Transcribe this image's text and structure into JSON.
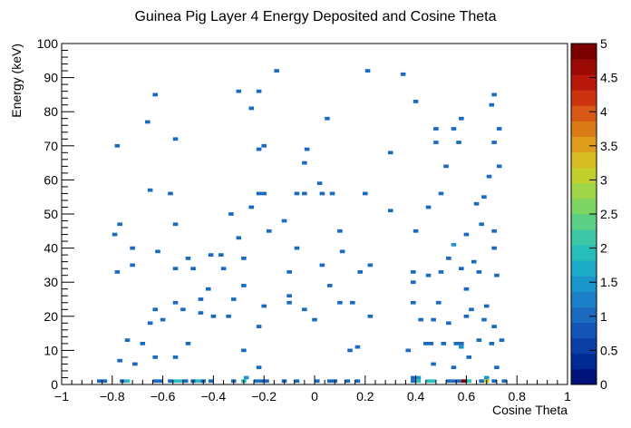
{
  "chart_data": {
    "type": "heatmap",
    "title": "Guinea Pig Layer 4 Energy Deposited and Cosine Theta",
    "xlabel": "Cosine Theta",
    "ylabel": "Energy (keV)",
    "xlim": [
      -1,
      1
    ],
    "ylim": [
      0,
      100
    ],
    "x_bin_width": 0.02,
    "y_bin_width": 1,
    "x_ticks": [
      "−1",
      "−0.8",
      "−0.6",
      "−0.4",
      "−0.2",
      "0",
      "0.2",
      "0.4",
      "0.6",
      "0.8",
      "1"
    ],
    "x_tick_values": [
      -1,
      -0.8,
      -0.6,
      -0.4,
      -0.2,
      0,
      0.2,
      0.4,
      0.6,
      0.8,
      1
    ],
    "y_ticks": [
      "0",
      "10",
      "20",
      "30",
      "40",
      "50",
      "60",
      "70",
      "80",
      "90",
      "100"
    ],
    "y_tick_values": [
      0,
      10,
      20,
      30,
      40,
      50,
      60,
      70,
      80,
      90,
      100
    ],
    "z_range": [
      0,
      5
    ],
    "colorbar_ticks": [
      "0",
      "0.5",
      "1",
      "1.5",
      "2",
      "2.5",
      "3",
      "3.5",
      "4",
      "4.5",
      "5"
    ],
    "colorbar_tick_values": [
      0,
      0.5,
      1,
      1.5,
      2,
      2.5,
      3,
      3.5,
      4,
      4.5,
      5
    ],
    "palette": [
      "#00137a",
      "#002a94",
      "#0b3fa6",
      "#1454b4",
      "#1a6ac0",
      "#1b80c8",
      "#1a96cc",
      "#1dabc8",
      "#27bdbb",
      "#3ec7a6",
      "#5bcf85",
      "#7cd462",
      "#9fd546",
      "#c2cf2d",
      "#d6bb22",
      "#dd9c1c",
      "#db7b18",
      "#d65814",
      "#cc3410",
      "#b8180c",
      "#9c0a06",
      "#7a0000"
    ],
    "bins": [
      {
        "x": -0.85,
        "y": 1,
        "z": 1
      },
      {
        "x": -0.83,
        "y": 1,
        "z": 1
      },
      {
        "x": -0.76,
        "y": 1,
        "z": 1
      },
      {
        "x": -0.74,
        "y": 1,
        "z": 2
      },
      {
        "x": -0.63,
        "y": 1,
        "z": 1
      },
      {
        "x": -0.61,
        "y": 1,
        "z": 1
      },
      {
        "x": -0.57,
        "y": 1,
        "z": 1
      },
      {
        "x": -0.55,
        "y": 1,
        "z": 2
      },
      {
        "x": -0.53,
        "y": 1,
        "z": 2
      },
      {
        "x": -0.51,
        "y": 1,
        "z": 1
      },
      {
        "x": -0.48,
        "y": 1,
        "z": 1
      },
      {
        "x": -0.46,
        "y": 1,
        "z": 2
      },
      {
        "x": -0.44,
        "y": 1,
        "z": 1
      },
      {
        "x": -0.41,
        "y": 1,
        "z": 1
      },
      {
        "x": -0.32,
        "y": 1,
        "z": 1
      },
      {
        "x": -0.28,
        "y": 1,
        "z": 2
      },
      {
        "x": -0.23,
        "y": 1,
        "z": 1
      },
      {
        "x": -0.21,
        "y": 1,
        "z": 1
      },
      {
        "x": -0.19,
        "y": 1,
        "z": 1
      },
      {
        "x": -0.12,
        "y": 1,
        "z": 1
      },
      {
        "x": -0.07,
        "y": 1,
        "z": 1
      },
      {
        "x": 0.01,
        "y": 1,
        "z": 1
      },
      {
        "x": 0.06,
        "y": 1,
        "z": 1
      },
      {
        "x": 0.08,
        "y": 1,
        "z": 1
      },
      {
        "x": 0.13,
        "y": 1,
        "z": 1
      },
      {
        "x": 0.17,
        "y": 1,
        "z": 1
      },
      {
        "x": 0.39,
        "y": 1,
        "z": 1
      },
      {
        "x": 0.41,
        "y": 1,
        "z": 2
      },
      {
        "x": 0.45,
        "y": 1,
        "z": 2
      },
      {
        "x": 0.47,
        "y": 1,
        "z": 2
      },
      {
        "x": 0.53,
        "y": 1,
        "z": 1
      },
      {
        "x": 0.55,
        "y": 1,
        "z": 1
      },
      {
        "x": 0.57,
        "y": 1,
        "z": 1
      },
      {
        "x": 0.59,
        "y": 1,
        "z": 5
      },
      {
        "x": 0.61,
        "y": 1,
        "z": 2
      },
      {
        "x": 0.66,
        "y": 1,
        "z": 1
      },
      {
        "x": 0.68,
        "y": 1,
        "z": 3
      },
      {
        "x": 0.71,
        "y": 1,
        "z": 1
      },
      {
        "x": 0.75,
        "y": 1,
        "z": 1
      },
      {
        "x": -0.27,
        "y": 2,
        "z": 1.5
      },
      {
        "x": 0.39,
        "y": 2,
        "z": 1
      },
      {
        "x": 0.41,
        "y": 2,
        "z": 1.5
      },
      {
        "x": 0.68,
        "y": 2,
        "z": 1.5
      },
      {
        "x": -0.77,
        "y": 7,
        "z": 1
      },
      {
        "x": -0.71,
        "y": 6,
        "z": 1
      },
      {
        "x": -0.63,
        "y": 8,
        "z": 1
      },
      {
        "x": -0.55,
        "y": 8,
        "z": 1
      },
      {
        "x": -0.28,
        "y": 10,
        "z": 1
      },
      {
        "x": -0.22,
        "y": 5,
        "z": 1
      },
      {
        "x": 0.14,
        "y": 10,
        "z": 1
      },
      {
        "x": 0.17,
        "y": 11,
        "z": 1
      },
      {
        "x": 0.37,
        "y": 10,
        "z": 1
      },
      {
        "x": 0.47,
        "y": 6,
        "z": 1
      },
      {
        "x": 0.55,
        "y": 5,
        "z": 1
      },
      {
        "x": 0.61,
        "y": 8,
        "z": 1
      },
      {
        "x": 0.72,
        "y": 5,
        "z": 1
      },
      {
        "x": -0.74,
        "y": 13,
        "z": 1
      },
      {
        "x": -0.68,
        "y": 12,
        "z": 1
      },
      {
        "x": -0.5,
        "y": 12,
        "z": 1
      },
      {
        "x": 0.44,
        "y": 12,
        "z": 1
      },
      {
        "x": 0.46,
        "y": 12,
        "z": 1
      },
      {
        "x": 0.51,
        "y": 12,
        "z": 1
      },
      {
        "x": 0.56,
        "y": 12,
        "z": 1
      },
      {
        "x": 0.58,
        "y": 12,
        "z": 1
      },
      {
        "x": 0.65,
        "y": 13,
        "z": 1
      },
      {
        "x": 0.7,
        "y": 12,
        "z": 1
      },
      {
        "x": 0.74,
        "y": 13,
        "z": 1
      },
      {
        "x": 0.58,
        "y": 11,
        "z": 1.5
      },
      {
        "x": -0.65,
        "y": 18,
        "z": 1
      },
      {
        "x": -0.6,
        "y": 19,
        "z": 1
      },
      {
        "x": -0.52,
        "y": 22,
        "z": 1
      },
      {
        "x": -0.45,
        "y": 21,
        "z": 1
      },
      {
        "x": -0.4,
        "y": 20,
        "z": 1
      },
      {
        "x": -0.34,
        "y": 20,
        "z": 1
      },
      {
        "x": -0.22,
        "y": 17,
        "z": 1
      },
      {
        "x": 0.0,
        "y": 19,
        "z": 1
      },
      {
        "x": 0.22,
        "y": 20,
        "z": 1
      },
      {
        "x": 0.42,
        "y": 19,
        "z": 1
      },
      {
        "x": 0.47,
        "y": 19,
        "z": 1
      },
      {
        "x": 0.53,
        "y": 18,
        "z": 1
      },
      {
        "x": 0.6,
        "y": 20,
        "z": 1
      },
      {
        "x": 0.67,
        "y": 19,
        "z": 1
      },
      {
        "x": 0.71,
        "y": 17,
        "z": 1
      },
      {
        "x": -0.63,
        "y": 22,
        "z": 1
      },
      {
        "x": -0.55,
        "y": 24,
        "z": 1
      },
      {
        "x": -0.45,
        "y": 25,
        "z": 1
      },
      {
        "x": -0.32,
        "y": 25,
        "z": 1
      },
      {
        "x": -0.2,
        "y": 23,
        "z": 1
      },
      {
        "x": -0.1,
        "y": 24,
        "z": 1
      },
      {
        "x": -0.04,
        "y": 22,
        "z": 1
      },
      {
        "x": 0.1,
        "y": 24,
        "z": 1
      },
      {
        "x": 0.15,
        "y": 24,
        "z": 1
      },
      {
        "x": 0.39,
        "y": 24,
        "z": 1
      },
      {
        "x": 0.49,
        "y": 24,
        "z": 1
      },
      {
        "x": 0.62,
        "y": 22,
        "z": 1
      },
      {
        "x": 0.68,
        "y": 23,
        "z": 1
      },
      {
        "x": -0.42,
        "y": 28,
        "z": 1
      },
      {
        "x": -0.28,
        "y": 29,
        "z": 1
      },
      {
        "x": -0.1,
        "y": 26,
        "z": 1
      },
      {
        "x": 0.06,
        "y": 29,
        "z": 1
      },
      {
        "x": 0.39,
        "y": 30,
        "z": 1
      },
      {
        "x": 0.6,
        "y": 28,
        "z": 1
      },
      {
        "x": -0.78,
        "y": 33,
        "z": 1
      },
      {
        "x": -0.72,
        "y": 35,
        "z": 1
      },
      {
        "x": -0.55,
        "y": 34,
        "z": 1
      },
      {
        "x": -0.48,
        "y": 34,
        "z": 1
      },
      {
        "x": -0.36,
        "y": 34,
        "z": 1
      },
      {
        "x": -0.1,
        "y": 33,
        "z": 1
      },
      {
        "x": 0.03,
        "y": 35,
        "z": 1
      },
      {
        "x": 0.18,
        "y": 33,
        "z": 1
      },
      {
        "x": 0.22,
        "y": 35,
        "z": 1
      },
      {
        "x": 0.39,
        "y": 33,
        "z": 1
      },
      {
        "x": 0.45,
        "y": 32,
        "z": 1
      },
      {
        "x": 0.5,
        "y": 33,
        "z": 1
      },
      {
        "x": 0.58,
        "y": 34,
        "z": 1
      },
      {
        "x": 0.65,
        "y": 33,
        "z": 1
      },
      {
        "x": 0.72,
        "y": 32,
        "z": 1
      },
      {
        "x": -0.72,
        "y": 40,
        "z": 1
      },
      {
        "x": -0.62,
        "y": 39,
        "z": 1
      },
      {
        "x": -0.5,
        "y": 37,
        "z": 1
      },
      {
        "x": -0.41,
        "y": 38,
        "z": 1
      },
      {
        "x": -0.37,
        "y": 38,
        "z": 1
      },
      {
        "x": -0.28,
        "y": 37,
        "z": 1
      },
      {
        "x": -0.07,
        "y": 40,
        "z": 1
      },
      {
        "x": 0.11,
        "y": 39,
        "z": 1
      },
      {
        "x": 0.53,
        "y": 37,
        "z": 1
      },
      {
        "x": 0.63,
        "y": 36,
        "z": 1
      },
      {
        "x": 0.71,
        "y": 40,
        "z": 1
      },
      {
        "x": 0.55,
        "y": 41,
        "z": 1.5
      },
      {
        "x": -0.79,
        "y": 44,
        "z": 1
      },
      {
        "x": -0.77,
        "y": 47,
        "z": 1
      },
      {
        "x": -0.55,
        "y": 47,
        "z": 1
      },
      {
        "x": -0.3,
        "y": 43,
        "z": 1
      },
      {
        "x": -0.18,
        "y": 45,
        "z": 1
      },
      {
        "x": 0.1,
        "y": 45,
        "z": 1
      },
      {
        "x": 0.4,
        "y": 45,
        "z": 1
      },
      {
        "x": 0.6,
        "y": 44,
        "z": 1
      },
      {
        "x": 0.66,
        "y": 47,
        "z": 1
      },
      {
        "x": 0.71,
        "y": 45,
        "z": 1
      },
      {
        "x": -0.33,
        "y": 50,
        "z": 1
      },
      {
        "x": -0.25,
        "y": 52,
        "z": 1
      },
      {
        "x": -0.12,
        "y": 48,
        "z": 1
      },
      {
        "x": 0.3,
        "y": 51,
        "z": 1
      },
      {
        "x": 0.45,
        "y": 52,
        "z": 1
      },
      {
        "x": 0.64,
        "y": 53,
        "z": 1
      },
      {
        "x": -0.65,
        "y": 57,
        "z": 1
      },
      {
        "x": -0.57,
        "y": 56,
        "z": 1
      },
      {
        "x": -0.22,
        "y": 56,
        "z": 1
      },
      {
        "x": -0.2,
        "y": 56,
        "z": 1
      },
      {
        "x": -0.07,
        "y": 56,
        "z": 1
      },
      {
        "x": -0.04,
        "y": 56,
        "z": 1
      },
      {
        "x": 0.03,
        "y": 56,
        "z": 1
      },
      {
        "x": 0.07,
        "y": 56,
        "z": 1
      },
      {
        "x": 0.2,
        "y": 56,
        "z": 1
      },
      {
        "x": 0.5,
        "y": 56,
        "z": 1
      },
      {
        "x": 0.67,
        "y": 55,
        "z": 1
      },
      {
        "x": 0.02,
        "y": 59,
        "z": 1
      },
      {
        "x": 0.69,
        "y": 61,
        "z": 1
      },
      {
        "x": 0.73,
        "y": 64,
        "z": 1
      },
      {
        "x": -0.04,
        "y": 65,
        "z": 1
      },
      {
        "x": 0.52,
        "y": 64,
        "z": 1
      },
      {
        "x": -0.78,
        "y": 70,
        "z": 1
      },
      {
        "x": -0.55,
        "y": 72,
        "z": 1
      },
      {
        "x": -0.22,
        "y": 69,
        "z": 1
      },
      {
        "x": -0.2,
        "y": 70,
        "z": 1
      },
      {
        "x": -0.03,
        "y": 69,
        "z": 1
      },
      {
        "x": 0.3,
        "y": 68,
        "z": 1
      },
      {
        "x": 0.48,
        "y": 71,
        "z": 1
      },
      {
        "x": 0.57,
        "y": 71,
        "z": 1
      },
      {
        "x": 0.71,
        "y": 71,
        "z": 1
      },
      {
        "x": -0.66,
        "y": 77,
        "z": 1
      },
      {
        "x": 0.05,
        "y": 78,
        "z": 1
      },
      {
        "x": 0.48,
        "y": 75,
        "z": 1
      },
      {
        "x": 0.55,
        "y": 75,
        "z": 1
      },
      {
        "x": 0.58,
        "y": 78,
        "z": 1
      },
      {
        "x": 0.73,
        "y": 75,
        "z": 1
      },
      {
        "x": -0.25,
        "y": 81,
        "z": 1
      },
      {
        "x": 0.4,
        "y": 83,
        "z": 1
      },
      {
        "x": 0.7,
        "y": 82,
        "z": 1
      },
      {
        "x": -0.63,
        "y": 85,
        "z": 1
      },
      {
        "x": -0.3,
        "y": 86,
        "z": 1
      },
      {
        "x": -0.22,
        "y": 86,
        "z": 1
      },
      {
        "x": 0.71,
        "y": 85,
        "z": 1
      },
      {
        "x": -0.15,
        "y": 92,
        "z": 1
      },
      {
        "x": 0.21,
        "y": 92,
        "z": 1
      },
      {
        "x": 0.35,
        "y": 91,
        "z": 1
      }
    ]
  }
}
